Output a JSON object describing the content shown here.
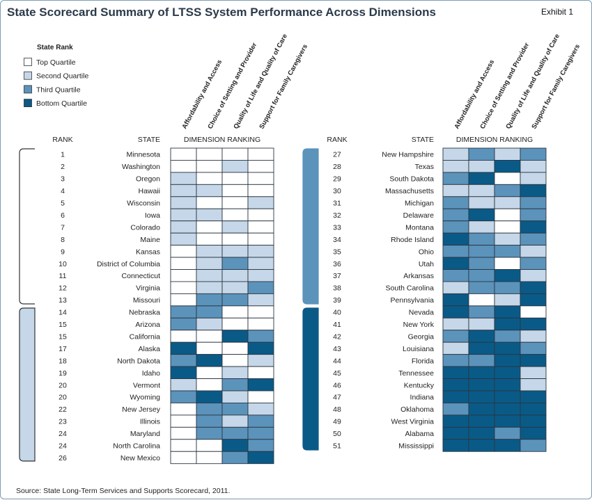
{
  "chart_data": {
    "type": "table",
    "title": "State Scorecard Summary of LTSS System Performance Across Dimensions",
    "exhibit": "Exhibit 1",
    "legend": {
      "title": "State Rank",
      "items": [
        {
          "label": "Top Quartile",
          "color": "#ffffff"
        },
        {
          "label": "Second Quartile",
          "color": "#c5d7e8"
        },
        {
          "label": "Third Quartile",
          "color": "#5b93bb"
        },
        {
          "label": "Bottom Quartile",
          "color": "#0a5a87"
        }
      ]
    },
    "dimensions": [
      "Affordability and Access",
      "Choice of Setting and Provider",
      "Quality of Life and Quality of Care",
      "Support for Family Caregivers"
    ],
    "headers": {
      "rank": "RANK",
      "state": "STATE",
      "ranking": "DIMENSION RANKING"
    },
    "states": [
      {
        "rank": "1",
        "state": "Minnesota",
        "q": [
          1,
          1,
          1,
          1
        ]
      },
      {
        "rank": "2",
        "state": "Washington",
        "q": [
          1,
          1,
          2,
          1
        ]
      },
      {
        "rank": "3",
        "state": "Oregon",
        "q": [
          2,
          1,
          1,
          1
        ]
      },
      {
        "rank": "4",
        "state": "Hawaii",
        "q": [
          2,
          2,
          1,
          1
        ]
      },
      {
        "rank": "5",
        "state": "Wisconsin",
        "q": [
          2,
          1,
          1,
          2
        ]
      },
      {
        "rank": "6",
        "state": "Iowa",
        "q": [
          2,
          2,
          1,
          1
        ]
      },
      {
        "rank": "7",
        "state": "Colorado",
        "q": [
          2,
          1,
          2,
          1
        ]
      },
      {
        "rank": "8",
        "state": "Maine",
        "q": [
          2,
          1,
          1,
          1
        ]
      },
      {
        "rank": "9",
        "state": "Kansas",
        "q": [
          1,
          2,
          2,
          2
        ]
      },
      {
        "rank": "10",
        "state": "District of Columbia",
        "q": [
          1,
          2,
          3,
          2
        ]
      },
      {
        "rank": "11",
        "state": "Connecticut",
        "q": [
          1,
          2,
          2,
          2
        ]
      },
      {
        "rank": "12",
        "state": "Virginia",
        "q": [
          1,
          2,
          2,
          3
        ]
      },
      {
        "rank": "13",
        "state": "Missouri",
        "q": [
          1,
          3,
          3,
          2
        ]
      },
      {
        "rank": "14",
        "state": "Nebraska",
        "q": [
          3,
          3,
          1,
          1
        ]
      },
      {
        "rank": "15",
        "state": "Arizona",
        "q": [
          3,
          2,
          1,
          1
        ]
      },
      {
        "rank": "15",
        "state": "California",
        "q": [
          1,
          1,
          4,
          3
        ]
      },
      {
        "rank": "17",
        "state": "Alaska",
        "q": [
          4,
          1,
          1,
          4
        ]
      },
      {
        "rank": "18",
        "state": "North Dakota",
        "q": [
          3,
          4,
          1,
          2
        ]
      },
      {
        "rank": "19",
        "state": "Idaho",
        "q": [
          4,
          1,
          2,
          1
        ]
      },
      {
        "rank": "20",
        "state": "Vermont",
        "q": [
          2,
          1,
          3,
          4
        ]
      },
      {
        "rank": "20",
        "state": "Wyoming",
        "q": [
          3,
          4,
          2,
          1
        ]
      },
      {
        "rank": "22",
        "state": "New Jersey",
        "q": [
          1,
          3,
          3,
          2
        ]
      },
      {
        "rank": "23",
        "state": "Illinois",
        "q": [
          1,
          3,
          2,
          3
        ]
      },
      {
        "rank": "24",
        "state": "Maryland",
        "q": [
          1,
          3,
          3,
          3
        ]
      },
      {
        "rank": "24",
        "state": "North Carolina",
        "q": [
          1,
          1,
          4,
          3
        ]
      },
      {
        "rank": "26",
        "state": "New Mexico",
        "q": [
          1,
          1,
          3,
          4
        ]
      },
      {
        "rank": "27",
        "state": "New Hampshire",
        "q": [
          2,
          3,
          2,
          3
        ]
      },
      {
        "rank": "28",
        "state": "Texas",
        "q": [
          2,
          2,
          4,
          2
        ]
      },
      {
        "rank": "29",
        "state": "South Dakota",
        "q": [
          3,
          4,
          1,
          2
        ]
      },
      {
        "rank": "30",
        "state": "Massachusetts",
        "q": [
          2,
          2,
          3,
          4
        ]
      },
      {
        "rank": "31",
        "state": "Michigan",
        "q": [
          3,
          2,
          2,
          3
        ]
      },
      {
        "rank": "32",
        "state": "Delaware",
        "q": [
          3,
          4,
          1,
          3
        ]
      },
      {
        "rank": "33",
        "state": "Montana",
        "q": [
          3,
          2,
          1,
          4
        ]
      },
      {
        "rank": "34",
        "state": "Rhode Island",
        "q": [
          4,
          3,
          2,
          3
        ]
      },
      {
        "rank": "35",
        "state": "Ohio",
        "q": [
          3,
          3,
          3,
          2
        ]
      },
      {
        "rank": "36",
        "state": "Utah",
        "q": [
          4,
          3,
          1,
          3
        ]
      },
      {
        "rank": "37",
        "state": "Arkansas",
        "q": [
          3,
          3,
          4,
          2
        ]
      },
      {
        "rank": "38",
        "state": "South Carolina",
        "q": [
          2,
          3,
          3,
          4
        ]
      },
      {
        "rank": "39",
        "state": "Pennsylvania",
        "q": [
          4,
          1,
          2,
          4
        ]
      },
      {
        "rank": "40",
        "state": "Nevada",
        "q": [
          4,
          3,
          4,
          1
        ]
      },
      {
        "rank": "41",
        "state": "New York",
        "q": [
          2,
          2,
          4,
          4
        ]
      },
      {
        "rank": "42",
        "state": "Georgia",
        "q": [
          3,
          4,
          3,
          2
        ]
      },
      {
        "rank": "43",
        "state": "Louisiana",
        "q": [
          2,
          4,
          4,
          3
        ]
      },
      {
        "rank": "44",
        "state": "Florida",
        "q": [
          3,
          3,
          4,
          4
        ]
      },
      {
        "rank": "45",
        "state": "Tennessee",
        "q": [
          4,
          4,
          4,
          2
        ]
      },
      {
        "rank": "46",
        "state": "Kentucky",
        "q": [
          4,
          4,
          4,
          2
        ]
      },
      {
        "rank": "47",
        "state": "Indiana",
        "q": [
          4,
          4,
          4,
          4
        ]
      },
      {
        "rank": "48",
        "state": "Oklahoma",
        "q": [
          3,
          4,
          4,
          4
        ]
      },
      {
        "rank": "49",
        "state": "West Virginia",
        "q": [
          4,
          4,
          4,
          4
        ]
      },
      {
        "rank": "50",
        "state": "Alabama",
        "q": [
          4,
          4,
          3,
          4
        ]
      },
      {
        "rank": "51",
        "state": "Mississippi",
        "q": [
          4,
          4,
          4,
          3
        ]
      }
    ],
    "source": "Source: State Long-Term Services and Supports Scorecard, 2011."
  }
}
